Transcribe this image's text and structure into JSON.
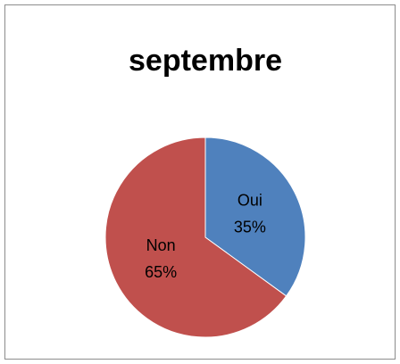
{
  "chart_data": {
    "type": "pie",
    "title": "septembre",
    "categories": [
      "Oui",
      "Non"
    ],
    "values": [
      35,
      65
    ],
    "value_labels": [
      "35%",
      "65%"
    ],
    "colors": [
      "#4f81bd",
      "#c0504d"
    ]
  }
}
